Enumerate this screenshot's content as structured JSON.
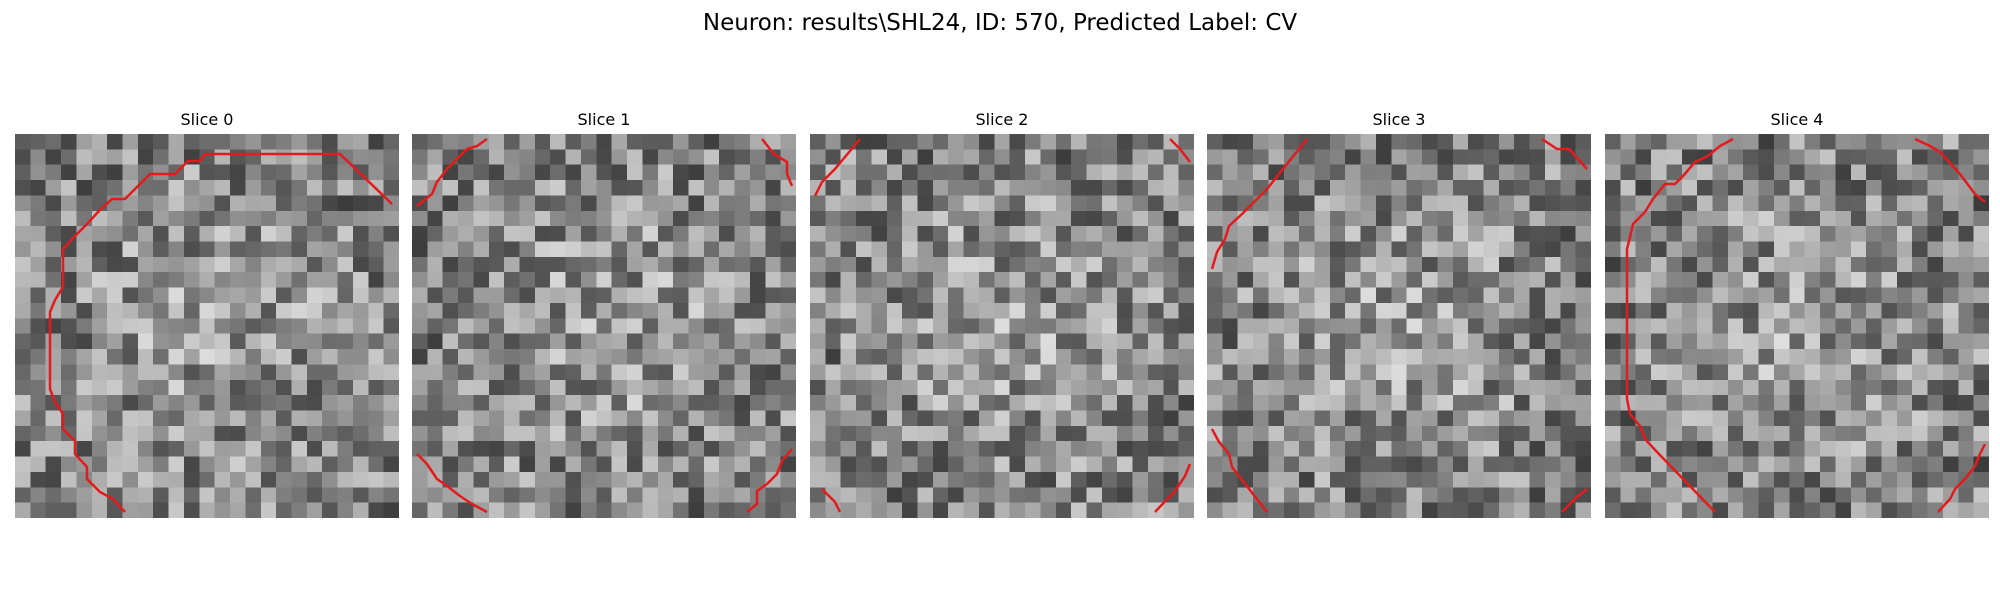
{
  "figure": {
    "title": "Neuron: results\\SHL24, ID: 570, Predicted Label: CV"
  },
  "colors": {
    "contour": "#e41a1c",
    "background": "#ffffff"
  },
  "panels": [
    {
      "title": "Slice 0"
    },
    {
      "title": "Slice 1"
    },
    {
      "title": "Slice 2"
    },
    {
      "title": "Slice 3"
    },
    {
      "title": "Slice 4"
    }
  ]
}
